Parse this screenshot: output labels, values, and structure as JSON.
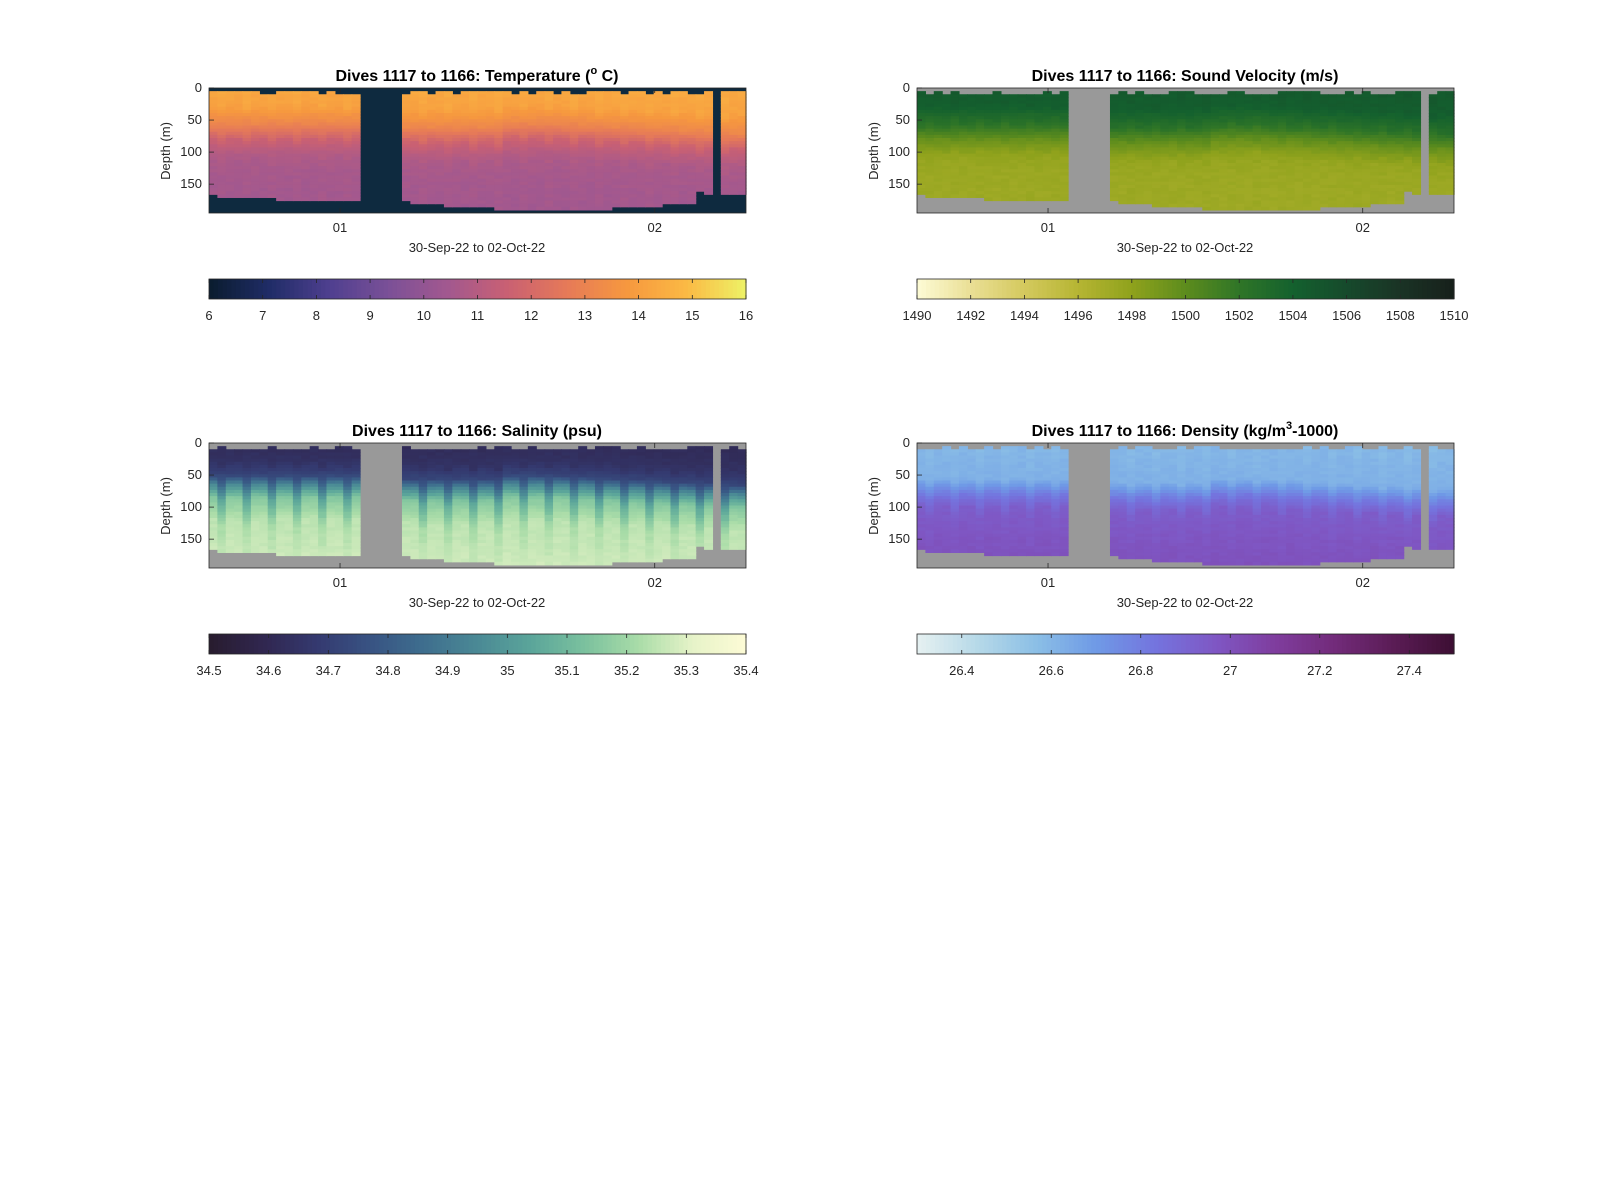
{
  "chart_data": [
    {
      "type": "heatmap",
      "title": "Dives 1117 to 1166: Temperature (° C)",
      "title_main": "Dives 1117 to 1166: Temperature (",
      "title_sup": "o",
      "title_tail": " C)",
      "ylabel": "Depth (m)",
      "xlabel": "30-Sep-22 to 02-Oct-22",
      "x_ticks": [
        "01",
        "02"
      ],
      "y_ticks": [
        0,
        50,
        100,
        150
      ],
      "ylim": [
        0,
        195
      ],
      "background_color": "#0e2a3f",
      "colorbar": {
        "ticks": [
          "6",
          "7",
          "8",
          "9",
          "10",
          "11",
          "12",
          "13",
          "14",
          "15",
          "16"
        ],
        "range": [
          6,
          16
        ],
        "colormap": [
          "#0a1c2e",
          "#1f2c66",
          "#4e3f8f",
          "#7a5097",
          "#a2588f",
          "#c96073",
          "#e67a58",
          "#f6983f",
          "#fbb944",
          "#eef266"
        ]
      },
      "profile": [
        [
          0,
          14.3
        ],
        [
          25,
          14.1
        ],
        [
          55,
          13.2
        ],
        [
          80,
          11.6
        ],
        [
          110,
          10.7
        ],
        [
          150,
          10.5
        ],
        [
          200,
          10.4
        ]
      ],
      "profile_alt": [
        [
          0,
          14.4
        ],
        [
          30,
          14.2
        ],
        [
          70,
          12.4
        ],
        [
          100,
          11.0
        ],
        [
          130,
          10.6
        ],
        [
          200,
          10.5
        ]
      ]
    },
    {
      "type": "heatmap",
      "title": "Dives 1117 to 1166: Sound Velocity (m/s)",
      "title_main": "Dives 1117 to 1166: Sound Velocity (m/s)",
      "title_sup": "",
      "title_tail": "",
      "ylabel": "Depth (m)",
      "xlabel": "30-Sep-22 to 02-Oct-22",
      "x_ticks": [
        "01",
        "02"
      ],
      "y_ticks": [
        0,
        50,
        100,
        150
      ],
      "ylim": [
        0,
        195
      ],
      "background_color": "#999999",
      "colorbar": {
        "ticks": [
          "1490",
          "1492",
          "1494",
          "1496",
          "1498",
          "1500",
          "1502",
          "1504",
          "1506",
          "1508",
          "1510"
        ],
        "range": [
          1490,
          1510
        ],
        "colormap": [
          "#fdfbd6",
          "#eadf95",
          "#d4c95e",
          "#b6b533",
          "#8fa21c",
          "#5d8c1d",
          "#2f7527",
          "#14612e",
          "#164a2c",
          "#1a3325",
          "#17201b"
        ]
      },
      "profile": [
        [
          0,
          1504.6
        ],
        [
          25,
          1504.3
        ],
        [
          55,
          1502.6
        ],
        [
          80,
          1499.6
        ],
        [
          110,
          1497.6
        ],
        [
          150,
          1497.3
        ],
        [
          200,
          1497.2
        ]
      ],
      "profile_alt": [
        [
          0,
          1504.8
        ],
        [
          30,
          1504.3
        ],
        [
          70,
          1500.8
        ],
        [
          100,
          1498.0
        ],
        [
          130,
          1497.4
        ],
        [
          200,
          1497.3
        ]
      ]
    },
    {
      "type": "heatmap",
      "title": "Dives 1117 to 1166: Salinity (psu)",
      "title_main": "Dives 1117 to 1166: Salinity (psu)",
      "title_sup": "",
      "title_tail": "",
      "ylabel": "Depth (m)",
      "xlabel": "30-Sep-22 to 02-Oct-22",
      "x_ticks": [
        "01",
        "02"
      ],
      "y_ticks": [
        0,
        50,
        100,
        150
      ],
      "ylim": [
        0,
        195
      ],
      "background_color": "#999999",
      "colorbar": {
        "ticks": [
          "34.5",
          "34.6",
          "34.7",
          "34.8",
          "34.9",
          "35",
          "35.1",
          "35.2",
          "35.3",
          "35.4"
        ],
        "range": [
          34.5,
          35.4
        ],
        "colormap": [
          "#281c2e",
          "#30264f",
          "#34396f",
          "#385383",
          "#3e6e8e",
          "#4a8995",
          "#5ba59a",
          "#7bc19e",
          "#a9dca8",
          "#e6f3c8",
          "#fdfbd6"
        ]
      },
      "profile": [
        [
          0,
          34.62
        ],
        [
          25,
          34.64
        ],
        [
          50,
          34.72
        ],
        [
          65,
          34.95
        ],
        [
          85,
          35.15
        ],
        [
          120,
          35.25
        ],
        [
          200,
          35.28
        ]
      ],
      "profile_alt": [
        [
          0,
          34.62
        ],
        [
          35,
          34.65
        ],
        [
          60,
          34.78
        ],
        [
          90,
          35.05
        ],
        [
          130,
          35.22
        ],
        [
          200,
          35.28
        ]
      ]
    },
    {
      "type": "heatmap",
      "title": "Dives 1117 to 1166: Density (kg/m³-1000)",
      "title_main": "Dives 1117 to 1166: Density (kg/m",
      "title_sup": "3",
      "title_tail": "-1000)",
      "ylabel": "Depth (m)",
      "xlabel": "30-Sep-22 to 02-Oct-22",
      "x_ticks": [
        "01",
        "02"
      ],
      "y_ticks": [
        0,
        50,
        100,
        150
      ],
      "ylim": [
        0,
        195
      ],
      "background_color": "#999999",
      "colorbar": {
        "ticks": [
          "26.4",
          "26.6",
          "26.8",
          "27",
          "27.2",
          "27.4"
        ],
        "range": [
          26.3,
          27.5
        ],
        "colormap": [
          "#e6f1f1",
          "#b7d9e8",
          "#8bbfe6",
          "#6f9ae6",
          "#7474de",
          "#7f57c4",
          "#7f3d9e",
          "#722b7a",
          "#5a1c55",
          "#3d0f33"
        ]
      },
      "profile": [
        [
          0,
          26.6
        ],
        [
          55,
          26.62
        ],
        [
          80,
          26.82
        ],
        [
          100,
          26.94
        ],
        [
          150,
          26.98
        ],
        [
          200,
          27.0
        ]
      ],
      "profile_alt": [
        [
          0,
          26.58
        ],
        [
          60,
          26.62
        ],
        [
          90,
          26.85
        ],
        [
          120,
          26.95
        ],
        [
          200,
          27.0
        ]
      ]
    }
  ]
}
